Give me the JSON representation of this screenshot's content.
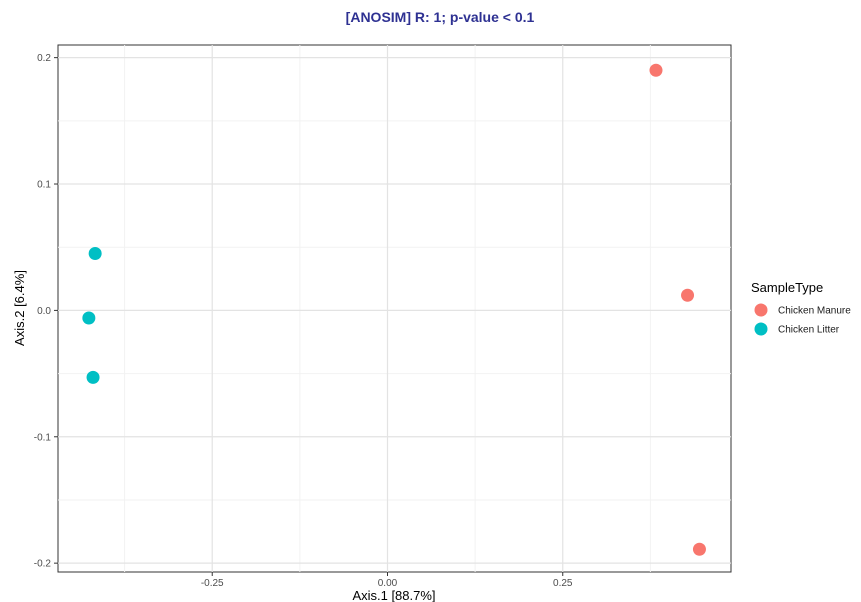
{
  "chart_data": {
    "type": "scatter",
    "title": "[ANOSIM] R: 1; p-value < 0.1",
    "xlabel": "Axis.1   [88.7%]",
    "ylabel": "Axis.2   [6.4%]",
    "xlim": [
      -0.47,
      0.49
    ],
    "ylim": [
      -0.207,
      0.21
    ],
    "x_ticks": [
      -0.25,
      0.0,
      0.25
    ],
    "x_tick_labels": [
      "-0.25",
      "0.00",
      "0.25"
    ],
    "y_ticks": [
      0.2,
      0.1,
      0.0,
      -0.1,
      -0.2
    ],
    "y_tick_labels": [
      "0.2",
      "0.1",
      "0.0",
      "-0.1",
      "-0.2"
    ],
    "grid": true,
    "legend": {
      "title": "SampleType",
      "placement": "right"
    },
    "series": [
      {
        "name": "Chicken Manure",
        "color": "#F8766D",
        "points": [
          {
            "x": 0.383,
            "y": 0.19
          },
          {
            "x": 0.428,
            "y": 0.012
          },
          {
            "x": 0.445,
            "y": -0.189
          }
        ]
      },
      {
        "name": "Chicken Litter",
        "color": "#00BFC4",
        "points": [
          {
            "x": -0.417,
            "y": 0.045
          },
          {
            "x": -0.426,
            "y": -0.006
          },
          {
            "x": -0.42,
            "y": -0.053
          }
        ]
      }
    ],
    "title_color": "#2E3192"
  }
}
